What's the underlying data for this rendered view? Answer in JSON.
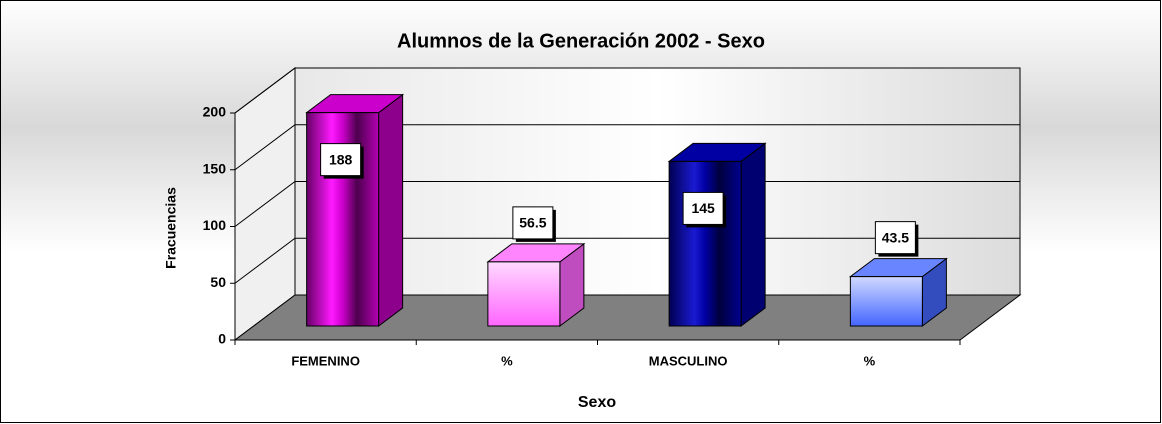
{
  "chart_data": {
    "type": "bar3d",
    "title": "Alumnos de la Generación 2002 - Sexo",
    "x_label": "Sexo",
    "y_label": "Fracuencias",
    "categories": [
      "FEMENINO",
      "%",
      "MASCULINO",
      "%"
    ],
    "values": [
      188,
      56.5,
      145,
      43.5
    ],
    "colors": [
      "#ff00ff",
      "#ff66ff",
      "#0000cc",
      "#4466ff"
    ],
    "ylim": [
      0,
      200
    ],
    "yticks": [
      0,
      50,
      100,
      150,
      200
    ],
    "grid": true
  }
}
